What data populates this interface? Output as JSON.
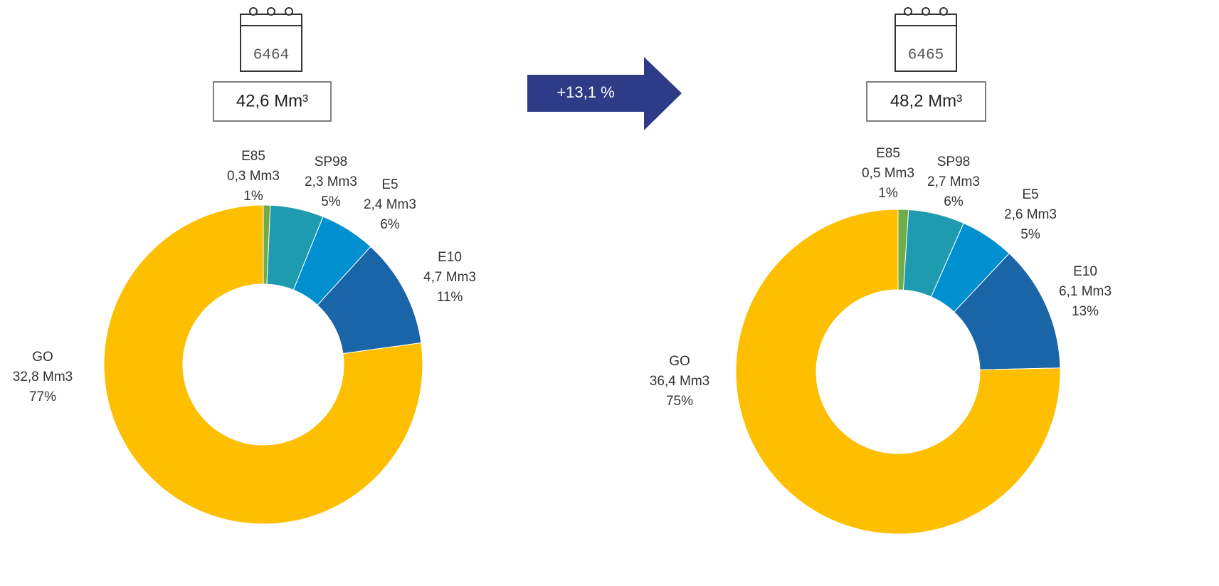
{
  "chart_data": [
    {
      "type": "pie",
      "year": "6464",
      "total_label": "42,6 Mm³",
      "categories": [
        "E85",
        "SP98",
        "E5",
        "E10",
        "GO"
      ],
      "values": [
        0.3,
        2.3,
        2.4,
        4.7,
        32.8
      ],
      "value_labels": [
        "0,3 Mm3",
        "2,3 Mm3",
        "2,4 Mm3",
        "4,7 Mm3",
        "32,8 Mm3"
      ],
      "percents": [
        1,
        5,
        6,
        11,
        77
      ],
      "percent_labels": [
        "1%",
        "5%",
        "6%",
        "11%",
        "77%"
      ],
      "colors": [
        "#70ad47",
        "#1f9bb0",
        "#0090d0",
        "#1a65a8",
        "#fdbf00"
      ]
    },
    {
      "type": "pie",
      "year": "6465",
      "total_label": "48,2 Mm³",
      "categories": [
        "E85",
        "SP98",
        "E5",
        "E10",
        "GO"
      ],
      "values": [
        0.5,
        2.7,
        2.6,
        6.1,
        36.4
      ],
      "value_labels": [
        "0,5 Mm3",
        "2,7 Mm3",
        "2,6 Mm3",
        "6,1 Mm3",
        "36,4 Mm3"
      ],
      "percents": [
        1,
        6,
        5,
        13,
        75
      ],
      "percent_labels": [
        "1%",
        "6%",
        "5%",
        "13%",
        "75%"
      ],
      "colors": [
        "#70ad47",
        "#1f9bb0",
        "#0090d0",
        "#1a65a8",
        "#fdbf00"
      ]
    }
  ],
  "arrow": {
    "label": "+13,1 %",
    "color": "#2e3b87"
  }
}
